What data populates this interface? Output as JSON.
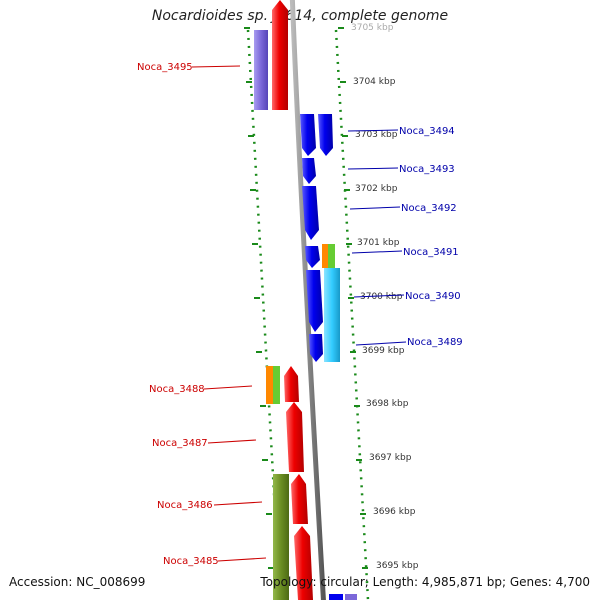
{
  "title": "Nocardioides sp. JS614, complete genome",
  "accession": "Accession: NC_008699",
  "summary": "Topology: circular; Length: 4,985,871 bp; Genes: 4,700",
  "ticks": [
    "3705 kbp",
    "3704 kbp",
    "3703 kbp",
    "3702 kbp",
    "3701 kbp",
    "3700 kbp",
    "3699 kbp",
    "3698 kbp",
    "3697 kbp",
    "3696 kbp",
    "3695 kbp"
  ],
  "genes_right": [
    "Noca_3494",
    "Noca_3493",
    "Noca_3492",
    "Noca_3491",
    "Noca_3490",
    "Noca_3489"
  ],
  "genes_left": [
    "Noca_3495",
    "Noca_3488",
    "Noca_3487",
    "Noca_3486",
    "Noca_3485"
  ],
  "colors": {
    "forward_gene": "#ee0000",
    "reverse_gene": "#0000ee",
    "forward_label": "#cc0000",
    "reverse_label": "#0000aa",
    "backbone": "#888888",
    "guide_dots": "#1a8a1a",
    "cyan_feature": "#33ccff",
    "olive_feature": "#6b8e23",
    "lavender_feature": "#7b68d9",
    "orange_feature": "#ff8800",
    "green_feature": "#66cc33"
  }
}
